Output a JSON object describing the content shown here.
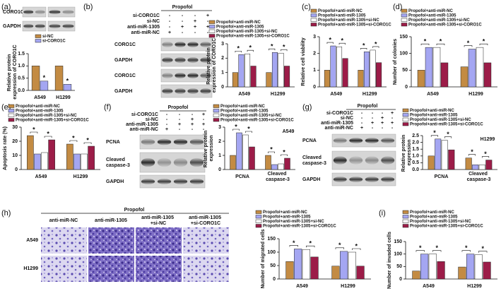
{
  "letters": [
    "(a)",
    "(b)",
    "(c)",
    "(d)",
    "(e)",
    "(f)",
    "(g)",
    "(h)",
    "(i)"
  ],
  "blots": [
    {
      "bands": [
        "CORO1C",
        "GAPDH"
      ]
    },
    {
      "header": "Propofol",
      "conditions": [
        {
          "name": "si-CORO1C",
          "signs": [
            "-",
            "-",
            "-",
            "+"
          ]
        },
        {
          "name": "si-NC",
          "signs": [
            "-",
            "-",
            "+",
            "-"
          ]
        },
        {
          "name": "anti-miR-1305",
          "signs": [
            "-",
            "+",
            "+",
            "+"
          ]
        },
        {
          "name": "anti-miR-NC",
          "signs": [
            "+",
            "-",
            "-",
            "-"
          ]
        }
      ],
      "bands": [
        "CORO1C",
        "GAPDH",
        "CORO1C",
        "GAPDH"
      ]
    },
    {
      "header": "Propofol",
      "conditions": [
        {
          "name": "si-CORO1C",
          "signs": [
            "-",
            "-",
            "-",
            "+"
          ]
        },
        {
          "name": "si-NC",
          "signs": [
            "-",
            "-",
            "+",
            "-"
          ]
        },
        {
          "name": "anti-miR-1305",
          "signs": [
            "-",
            "+",
            "+",
            "+"
          ]
        },
        {
          "name": "anti-miR-NC",
          "signs": [
            "+",
            "-",
            "-",
            "-"
          ]
        }
      ],
      "bands": [
        "PCNA",
        "Cleaved caspase-3",
        "GAPDH"
      ]
    },
    {
      "header": "Propofol",
      "conditions": [
        {
          "name": "si-CORO1C",
          "signs": [
            "-",
            "-",
            "-",
            "+"
          ]
        },
        {
          "name": "si-NC",
          "signs": [
            "-",
            "-",
            "+",
            "-"
          ]
        },
        {
          "name": "anti-miR-1305",
          "signs": [
            "-",
            "+",
            "+",
            "+"
          ]
        },
        {
          "name": "anti-miR-NC",
          "signs": [
            "+",
            "-",
            "-",
            "-"
          ]
        }
      ],
      "bands": [
        "PCNA",
        "Cleaved caspase-3",
        "GAPDH"
      ]
    }
  ],
  "micrographs": {
    "header": "Propofol",
    "columns": [
      "anti-miR-NC",
      "anti-miR-1305",
      "anti-miR-1305 +si-NC",
      "anti-miR-1305 +si-CORO1C"
    ],
    "rows": [
      "A549",
      "H1299"
    ]
  },
  "chart_data": [
    {
      "type": "bar",
      "ylabel": "Relative protein expression of CORO1C",
      "categories": [
        "A549",
        "H1299"
      ],
      "series": [
        {
          "name": "si-NC",
          "color": "#c38b43",
          "values": [
            1.0,
            1.0
          ]
        },
        {
          "name": "si-CORO1C",
          "color": "#a4a6f2",
          "values": [
            0.38,
            0.25
          ]
        }
      ],
      "ylim": [
        0,
        1.5
      ],
      "yticks": [
        {
          "value": 0,
          "label": "0.0"
        },
        0.5,
        {
          "value": 1,
          "label": "1.0"
        },
        1.5
      ],
      "annotations": [
        {
          "text": "*",
          "category": 0,
          "series": [
            1
          ]
        },
        {
          "text": "*",
          "category": 1,
          "series": [
            1
          ]
        }
      ]
    },
    {
      "type": "bar",
      "ylabel": "Relative protein expression of CORO1C",
      "categories": [
        "A549",
        "H1299"
      ],
      "series": [
        {
          "name": "Propofol+anti-miR-NC",
          "color": "#c38b43",
          "values": [
            1.0,
            1.0
          ]
        },
        {
          "name": "Propofol+anti-miR-1305",
          "color": "#a4a6f2",
          "values": [
            2.25,
            2.4
          ]
        },
        {
          "name": "Propofol+anti-miR-1305+si-NC",
          "color": "#ffffff",
          "values": [
            2.3,
            2.35
          ]
        },
        {
          "name": "Propofol+anti-miR-1305+si-CORO1C",
          "color": "#9c1c48",
          "values": [
            1.45,
            1.45
          ]
        }
      ],
      "ylim": [
        0,
        3
      ],
      "yticks": [
        0,
        1,
        2,
        3
      ],
      "annotations": [
        {
          "text": "*",
          "category": 0,
          "series": [
            0,
            1
          ]
        },
        {
          "text": "*",
          "category": 0,
          "series": [
            2,
            3
          ]
        },
        {
          "text": "*",
          "category": 1,
          "series": [
            0,
            1
          ]
        },
        {
          "text": "*",
          "category": 1,
          "series": [
            2,
            3
          ]
        }
      ]
    },
    {
      "type": "bar",
      "ylabel": "Relative cell viability",
      "categories": [
        "A549",
        "H1299"
      ],
      "series": [
        {
          "name": "Propofol+anti-miR-NC",
          "color": "#c38b43",
          "values": [
            1.0,
            1.0
          ]
        },
        {
          "name": "Propofol+anti-miR-1305",
          "color": "#a4a6f2",
          "values": [
            2.45,
            2.1
          ]
        },
        {
          "name": "Propofol+anti-miR-1305+si-NC",
          "color": "#ffffff",
          "values": [
            2.4,
            2.2
          ]
        },
        {
          "name": "Propofol+anti-miR-1305+si-CORO1C",
          "color": "#9c1c48",
          "values": [
            1.7,
            1.45
          ]
        }
      ],
      "ylim": [
        0,
        3
      ],
      "yticks": [
        0,
        1,
        2,
        3
      ],
      "annotations": [
        {
          "text": "*",
          "category": 0,
          "series": [
            0,
            1
          ]
        },
        {
          "text": "*",
          "category": 0,
          "series": [
            2,
            3
          ]
        },
        {
          "text": "*",
          "category": 1,
          "series": [
            0,
            1
          ]
        },
        {
          "text": "*",
          "category": 1,
          "series": [
            2,
            3
          ]
        }
      ]
    },
    {
      "type": "bar",
      "ylabel": "Number of colonies",
      "categories": [
        "A549",
        "H1299"
      ],
      "series": [
        {
          "name": "Propofol+anti-miR-NC",
          "color": "#c38b43",
          "values": [
            50,
            60
          ]
        },
        {
          "name": "Propofol+anti-miR-1305",
          "color": "#a4a6f2",
          "values": [
            118,
            113
          ]
        },
        {
          "name": "Propofol+anti-miR-1305+si-NC",
          "color": "#ffffff",
          "values": [
            118,
            118
          ]
        },
        {
          "name": "Propofol+anti-miR-1305+si-CORO1C",
          "color": "#9c1c48",
          "values": [
            72,
            72
          ]
        }
      ],
      "ylim": [
        0,
        150
      ],
      "yticks": [
        0,
        50,
        100,
        150
      ],
      "annotations": [
        {
          "text": "*",
          "category": 0,
          "series": [
            0,
            1
          ]
        },
        {
          "text": "*",
          "category": 0,
          "series": [
            2,
            3
          ]
        },
        {
          "text": "*",
          "category": 1,
          "series": [
            0,
            1
          ]
        },
        {
          "text": "*",
          "category": 1,
          "series": [
            2,
            3
          ]
        }
      ]
    },
    {
      "type": "bar",
      "ylabel": "Apoptosis rate (%)",
      "categories": [
        "A549",
        "H1299"
      ],
      "series": [
        {
          "name": "Propofol+anti-miR-NC",
          "color": "#c38b43",
          "values": [
            24,
            18
          ]
        },
        {
          "name": "Propofol+anti-miR-1305",
          "color": "#a4a6f2",
          "values": [
            11,
            11
          ]
        },
        {
          "name": "Propofol+anti-miR-1305+si-NC",
          "color": "#ffffff",
          "values": [
            12,
            11
          ]
        },
        {
          "name": "Propofol+anti-miR-1305+si-CORO1C",
          "color": "#9c1c48",
          "values": [
            21,
            16.5
          ]
        }
      ],
      "ylim": [
        0,
        30
      ],
      "yticks": [
        0,
        10,
        20,
        30
      ],
      "annotations": [
        {
          "text": "*",
          "category": 0,
          "series": [
            0,
            1
          ]
        },
        {
          "text": "*",
          "category": 0,
          "series": [
            2,
            3
          ]
        },
        {
          "text": "*",
          "category": 1,
          "series": [
            0,
            1
          ]
        },
        {
          "text": "*",
          "category": 1,
          "series": [
            2,
            3
          ]
        }
      ]
    },
    {
      "type": "bar",
      "ylabel": "Relative protein expression",
      "subtitle": "A549",
      "categories": [
        "PCNA",
        "Cleaved caspase-3"
      ],
      "series": [
        {
          "name": "Propofol+anti-miR-NC",
          "color": "#c38b43",
          "values": [
            1.0,
            1.0
          ]
        },
        {
          "name": "Propofol+anti-miR-1305",
          "color": "#a4a6f2",
          "values": [
            2.6,
            0.35
          ]
        },
        {
          "name": "Propofol+anti-miR-1305+si-NC",
          "color": "#ffffff",
          "values": [
            2.45,
            0.4
          ]
        },
        {
          "name": "Propofol+anti-miR-1305+si-CORO1C",
          "color": "#9c1c48",
          "values": [
            1.6,
            0.8
          ]
        }
      ],
      "ylim": [
        0,
        3
      ],
      "yticks": [
        0,
        1,
        2,
        3
      ],
      "annotations": [
        {
          "text": "*",
          "category": 0,
          "series": [
            0,
            1
          ]
        },
        {
          "text": "*",
          "category": 0,
          "series": [
            2,
            3
          ]
        },
        {
          "text": "*",
          "category": 1,
          "series": [
            0,
            1
          ]
        },
        {
          "text": "*",
          "category": 1,
          "series": [
            2,
            3
          ]
        }
      ]
    },
    {
      "type": "bar",
      "ylabel": "Relative protein expression",
      "subtitle": "H1299",
      "categories": [
        "PCNA",
        "Cleaved caspase-3"
      ],
      "series": [
        {
          "name": "Propofol+anti-miR-NC",
          "color": "#c38b43",
          "values": [
            1.0,
            0.85
          ]
        },
        {
          "name": "Propofol+anti-miR-1305",
          "color": "#a4a6f2",
          "values": [
            2.25,
            0.35
          ]
        },
        {
          "name": "Propofol+anti-miR-1305+si-NC",
          "color": "#ffffff",
          "values": [
            2.15,
            0.35
          ]
        },
        {
          "name": "Propofol+anti-miR-1305+si-CORO1C",
          "color": "#9c1c48",
          "values": [
            1.45,
            0.7
          ]
        }
      ],
      "ylim": [
        0,
        2.5
      ],
      "yticks": [
        {
          "value": 0,
          "label": "0.0"
        },
        0.5,
        {
          "value": 1,
          "label": "1.0"
        },
        1.5,
        {
          "value": 2,
          "label": "2.0"
        },
        2.5
      ],
      "annotations": [
        {
          "text": "*",
          "category": 0,
          "series": [
            0,
            1
          ]
        },
        {
          "text": "*",
          "category": 0,
          "series": [
            2,
            3
          ]
        },
        {
          "text": "*",
          "category": 1,
          "series": [
            0,
            1
          ]
        },
        {
          "text": "*",
          "category": 1,
          "series": [
            2,
            3
          ]
        }
      ]
    },
    {
      "type": "bar",
      "ylabel": "Number of migrated cells",
      "categories": [
        "A549",
        "H1299"
      ],
      "series": [
        {
          "name": "Propofol+anti-miR-NC",
          "color": "#c38b43",
          "values": [
            65,
            48
          ]
        },
        {
          "name": "Propofol+anti-miR-1305",
          "color": "#a4a6f2",
          "values": [
            112,
            103
          ]
        },
        {
          "name": "Propofol+anti-miR-1305+si-NC",
          "color": "#ffffff",
          "values": [
            110,
            100
          ]
        },
        {
          "name": "Propofol+anti-miR-1305+si-CORO1C",
          "color": "#9c1c48",
          "values": [
            82,
            48
          ]
        }
      ],
      "ylim": [
        0,
        150
      ],
      "yticks": [
        0,
        50,
        100,
        150
      ],
      "annotations": [
        {
          "text": "*",
          "category": 0,
          "series": [
            0,
            1
          ]
        },
        {
          "text": "*",
          "category": 0,
          "series": [
            2,
            3
          ]
        },
        {
          "text": "*",
          "category": 1,
          "series": [
            0,
            1
          ]
        },
        {
          "text": "*",
          "category": 1,
          "series": [
            2,
            3
          ]
        }
      ]
    },
    {
      "type": "bar",
      "ylabel": "Number of invaded cells",
      "categories": [
        "A549",
        "H1299"
      ],
      "series": [
        {
          "name": "Propofol+anti-miR-NC",
          "color": "#c38b43",
          "values": [
            32,
            48
          ]
        },
        {
          "name": "Propofol+anti-miR-1305",
          "color": "#a4a6f2",
          "values": [
            100,
            100
          ]
        },
        {
          "name": "Propofol+anti-miR-1305+si-NC",
          "color": "#ffffff",
          "values": [
            100,
            97
          ]
        },
        {
          "name": "Propofol+anti-miR-1305+si-CORO1C",
          "color": "#9c1c48",
          "values": [
            70,
            68
          ]
        }
      ],
      "ylim": [
        0,
        150
      ],
      "yticks": [
        0,
        50,
        100,
        150
      ],
      "annotations": [
        {
          "text": "*",
          "category": 0,
          "series": [
            0,
            1
          ]
        },
        {
          "text": "*",
          "category": 0,
          "series": [
            2,
            3
          ]
        },
        {
          "text": "*",
          "category": 1,
          "series": [
            0,
            1
          ]
        },
        {
          "text": "*",
          "category": 1,
          "series": [
            2,
            3
          ]
        }
      ]
    }
  ]
}
